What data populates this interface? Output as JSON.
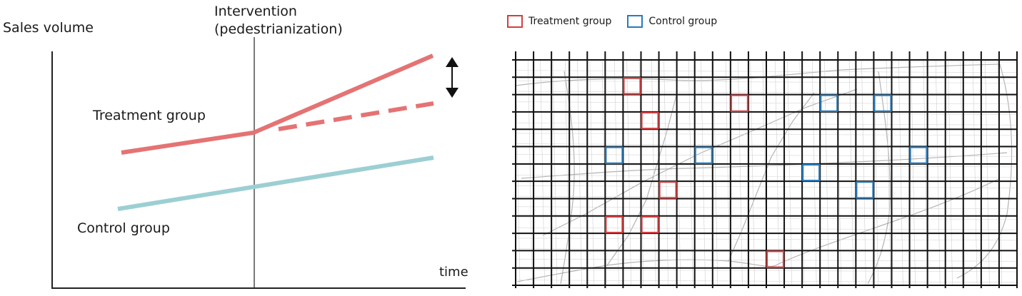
{
  "did_plot": {
    "ylabel": "Sales volume",
    "xlabel": "time",
    "intervention_line1": "Intervention",
    "intervention_line2": "(pedestrianization)",
    "treatment_label": "Treatment group",
    "control_label": "Control group"
  },
  "legend": {
    "treatment": "Treatment group",
    "control": "Control group"
  },
  "colors": {
    "treatment": "#e57373",
    "treatment_box": "#d04040",
    "control": "#9ccfd3",
    "control_box": "#2a7ab8",
    "axis": "#222222",
    "grid": "#111111",
    "map_lines": "#9a9a9a"
  },
  "grid": {
    "columns": 28,
    "rows": 13
  },
  "treatment_cells": [
    [
      6,
      1
    ],
    [
      12,
      2
    ],
    [
      7,
      3
    ],
    [
      8,
      7
    ],
    [
      5,
      9
    ],
    [
      7,
      9
    ],
    [
      14,
      11
    ]
  ],
  "control_cells": [
    [
      17,
      2
    ],
    [
      20,
      2
    ],
    [
      5,
      5
    ],
    [
      10,
      5
    ],
    [
      22,
      5
    ],
    [
      16,
      6
    ],
    [
      19,
      7
    ]
  ]
}
